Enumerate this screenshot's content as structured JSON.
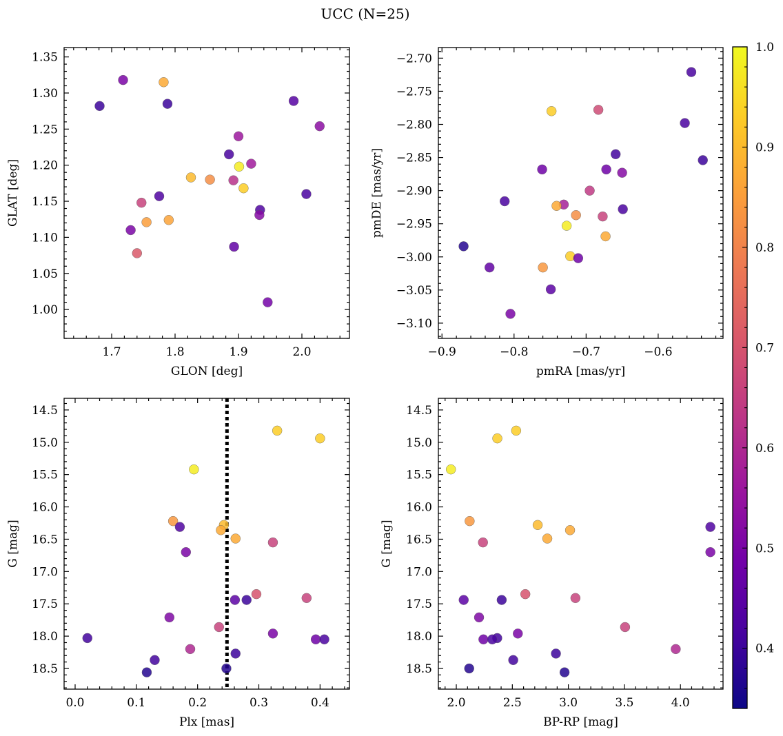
{
  "figure": {
    "title": "UCC (N=25)",
    "colormap": [
      "#0d0887",
      "#46039f",
      "#7201a8",
      "#9c179e",
      "#bd3786",
      "#d8576b",
      "#ed7953",
      "#fb9f3a",
      "#fdca26",
      "#f0f921"
    ]
  },
  "colorbar": {
    "vmin": 0.34,
    "vmax": 1.0,
    "ticks": [
      0.4,
      0.5,
      0.6,
      0.7,
      0.8,
      0.9,
      1.0
    ],
    "tick_labels": [
      "0.4",
      "0.5",
      "0.6",
      "0.7",
      "0.8",
      "0.9",
      "1.0"
    ]
  },
  "chart_data": [
    {
      "type": "scatter",
      "xlabel": "GLON [deg]",
      "ylabel": "GLAT [deg]",
      "xlim": [
        1.625,
        2.075
      ],
      "ylim": [
        0.96,
        1.363
      ],
      "yreverse": false,
      "xticks": [
        1.7,
        1.8,
        1.9,
        2.0
      ],
      "xtick_labels": [
        "1.7",
        "1.8",
        "1.9",
        "2.0"
      ],
      "yticks": [
        1.0,
        1.05,
        1.1,
        1.15,
        1.2,
        1.25,
        1.3,
        1.35
      ],
      "ytick_labels": [
        "1.00",
        "1.05",
        "1.10",
        "1.15",
        "1.20",
        "1.25",
        "1.30",
        "1.35"
      ],
      "points": [
        {
          "x": 1.681,
          "y": 1.282,
          "c": 0.4
        },
        {
          "x": 1.718,
          "y": 1.318,
          "c": 0.5
        },
        {
          "x": 1.782,
          "y": 1.315,
          "c": 0.87
        },
        {
          "x": 1.788,
          "y": 1.285,
          "c": 0.4
        },
        {
          "x": 1.987,
          "y": 1.289,
          "c": 0.44
        },
        {
          "x": 2.028,
          "y": 1.254,
          "c": 0.53
        },
        {
          "x": 1.9,
          "y": 1.24,
          "c": 0.56
        },
        {
          "x": 1.885,
          "y": 1.215,
          "c": 0.42
        },
        {
          "x": 1.92,
          "y": 1.202,
          "c": 0.57
        },
        {
          "x": 1.901,
          "y": 1.198,
          "c": 0.98
        },
        {
          "x": 1.825,
          "y": 1.183,
          "c": 0.9
        },
        {
          "x": 1.855,
          "y": 1.18,
          "c": 0.82
        },
        {
          "x": 1.892,
          "y": 1.179,
          "c": 0.62
        },
        {
          "x": 1.908,
          "y": 1.168,
          "c": 0.93
        },
        {
          "x": 2.007,
          "y": 1.16,
          "c": 0.42
        },
        {
          "x": 1.775,
          "y": 1.157,
          "c": 0.43
        },
        {
          "x": 1.747,
          "y": 1.148,
          "c": 0.66
        },
        {
          "x": 1.934,
          "y": 1.138,
          "c": 0.43
        },
        {
          "x": 1.933,
          "y": 1.131,
          "c": 0.52
        },
        {
          "x": 1.79,
          "y": 1.124,
          "c": 0.86
        },
        {
          "x": 1.755,
          "y": 1.121,
          "c": 0.85
        },
        {
          "x": 1.73,
          "y": 1.11,
          "c": 0.5
        },
        {
          "x": 1.74,
          "y": 1.078,
          "c": 0.71
        },
        {
          "x": 1.893,
          "y": 1.087,
          "c": 0.46
        },
        {
          "x": 1.946,
          "y": 1.01,
          "c": 0.49
        }
      ]
    },
    {
      "type": "scatter",
      "xlabel": "pmRA [mas/yr]",
      "ylabel": "pmDE [mas/yr]",
      "xlim": [
        -0.905,
        -0.51
      ],
      "ylim": [
        -3.123,
        -2.684
      ],
      "yreverse": false,
      "xticks": [
        -0.9,
        -0.8,
        -0.7,
        -0.6
      ],
      "xtick_labels": [
        "−0.9",
        "−0.8",
        "−0.7",
        "−0.6"
      ],
      "yticks": [
        -3.1,
        -3.05,
        -3.0,
        -2.95,
        -2.9,
        -2.85,
        -2.8,
        -2.75,
        -2.7
      ],
      "ytick_labels": [
        "−3.10",
        "−3.05",
        "−3.00",
        "−2.95",
        "−2.90",
        "−2.85",
        "−2.80",
        "−2.75",
        "−2.70"
      ],
      "points": [
        {
          "x": -0.554,
          "y": -2.721,
          "c": 0.42
        },
        {
          "x": -0.748,
          "y": -2.78,
          "c": 0.93
        },
        {
          "x": -0.683,
          "y": -2.778,
          "c": 0.68
        },
        {
          "x": -0.563,
          "y": -2.798,
          "c": 0.42
        },
        {
          "x": -0.659,
          "y": -2.845,
          "c": 0.41
        },
        {
          "x": -0.538,
          "y": -2.854,
          "c": 0.4
        },
        {
          "x": -0.761,
          "y": -2.868,
          "c": 0.48
        },
        {
          "x": -0.672,
          "y": -2.868,
          "c": 0.48
        },
        {
          "x": -0.65,
          "y": -2.873,
          "c": 0.52
        },
        {
          "x": -0.695,
          "y": -2.9,
          "c": 0.64
        },
        {
          "x": -0.813,
          "y": -2.916,
          "c": 0.42
        },
        {
          "x": -0.731,
          "y": -2.921,
          "c": 0.58
        },
        {
          "x": -0.741,
          "y": -2.923,
          "c": 0.87
        },
        {
          "x": -0.649,
          "y": -2.928,
          "c": 0.42
        },
        {
          "x": -0.714,
          "y": -2.937,
          "c": 0.82
        },
        {
          "x": -0.677,
          "y": -2.939,
          "c": 0.66
        },
        {
          "x": -0.727,
          "y": -2.953,
          "c": 0.98
        },
        {
          "x": -0.673,
          "y": -2.969,
          "c": 0.87
        },
        {
          "x": -0.87,
          "y": -2.984,
          "c": 0.37
        },
        {
          "x": -0.722,
          "y": -2.999,
          "c": 0.93
        },
        {
          "x": -0.711,
          "y": -3.002,
          "c": 0.48
        },
        {
          "x": -0.834,
          "y": -3.016,
          "c": 0.46
        },
        {
          "x": -0.76,
          "y": -3.016,
          "c": 0.84
        },
        {
          "x": -0.749,
          "y": -3.049,
          "c": 0.45
        },
        {
          "x": -0.805,
          "y": -3.086,
          "c": 0.5
        }
      ]
    },
    {
      "type": "scatter",
      "xlabel": "Plx [mas]",
      "ylabel": "G [mag]",
      "xlim": [
        -0.018,
        0.448
      ],
      "ylim": [
        14.32,
        18.82
      ],
      "yreverse": true,
      "xticks": [
        0.0,
        0.1,
        0.2,
        0.3,
        0.4
      ],
      "xtick_labels": [
        "0.0",
        "0.1",
        "0.2",
        "0.3",
        "0.4"
      ],
      "yticks": [
        14.5,
        15.0,
        15.5,
        16.0,
        16.5,
        17.0,
        17.5,
        18.0,
        18.5
      ],
      "ytick_labels": [
        "14.5",
        "15.0",
        "15.5",
        "16.0",
        "16.5",
        "17.0",
        "17.5",
        "18.0",
        "18.5"
      ],
      "vline": 0.248,
      "points": [
        {
          "x": 0.33,
          "y": 14.82,
          "c": 0.93
        },
        {
          "x": 0.4,
          "y": 14.94,
          "c": 0.93
        },
        {
          "x": 0.194,
          "y": 15.42,
          "c": 0.98
        },
        {
          "x": 0.16,
          "y": 16.22,
          "c": 0.84
        },
        {
          "x": 0.243,
          "y": 16.28,
          "c": 0.9
        },
        {
          "x": 0.171,
          "y": 16.31,
          "c": 0.43
        },
        {
          "x": 0.238,
          "y": 16.36,
          "c": 0.87
        },
        {
          "x": 0.262,
          "y": 16.49,
          "c": 0.87
        },
        {
          "x": 0.323,
          "y": 16.55,
          "c": 0.66
        },
        {
          "x": 0.181,
          "y": 16.7,
          "c": 0.5
        },
        {
          "x": 0.296,
          "y": 17.35,
          "c": 0.7
        },
        {
          "x": 0.378,
          "y": 17.41,
          "c": 0.66
        },
        {
          "x": 0.261,
          "y": 17.44,
          "c": 0.45
        },
        {
          "x": 0.28,
          "y": 17.44,
          "c": 0.4
        },
        {
          "x": 0.154,
          "y": 17.71,
          "c": 0.51
        },
        {
          "x": 0.235,
          "y": 17.86,
          "c": 0.66
        },
        {
          "x": 0.323,
          "y": 17.96,
          "c": 0.5
        },
        {
          "x": 0.02,
          "y": 18.03,
          "c": 0.41
        },
        {
          "x": 0.393,
          "y": 18.05,
          "c": 0.48
        },
        {
          "x": 0.407,
          "y": 18.05,
          "c": 0.42
        },
        {
          "x": 0.188,
          "y": 18.2,
          "c": 0.6
        },
        {
          "x": 0.262,
          "y": 18.27,
          "c": 0.4
        },
        {
          "x": 0.13,
          "y": 18.37,
          "c": 0.41
        },
        {
          "x": 0.247,
          "y": 18.5,
          "c": 0.37
        },
        {
          "x": 0.117,
          "y": 18.56,
          "c": 0.37
        }
      ]
    },
    {
      "type": "scatter",
      "xlabel": "BP-RP [mag]",
      "ylabel": "G [mag]",
      "xlim": [
        1.84,
        4.38
      ],
      "ylim": [
        14.32,
        18.82
      ],
      "yreverse": true,
      "xticks": [
        2.0,
        2.5,
        3.0,
        3.5,
        4.0
      ],
      "xtick_labels": [
        "2.0",
        "2.5",
        "3.0",
        "3.5",
        "4.0"
      ],
      "yticks": [
        14.5,
        15.0,
        15.5,
        16.0,
        16.5,
        17.0,
        17.5,
        18.0,
        18.5
      ],
      "ytick_labels": [
        "14.5",
        "15.0",
        "15.5",
        "16.0",
        "16.5",
        "17.0",
        "17.5",
        "18.0",
        "18.5"
      ],
      "points": [
        {
          "x": 2.534,
          "y": 14.82,
          "c": 0.93
        },
        {
          "x": 2.366,
          "y": 14.94,
          "c": 0.93
        },
        {
          "x": 1.952,
          "y": 15.42,
          "c": 0.98
        },
        {
          "x": 2.119,
          "y": 16.22,
          "c": 0.84
        },
        {
          "x": 2.726,
          "y": 16.28,
          "c": 0.9
        },
        {
          "x": 4.267,
          "y": 16.31,
          "c": 0.43
        },
        {
          "x": 3.015,
          "y": 16.36,
          "c": 0.87
        },
        {
          "x": 2.812,
          "y": 16.49,
          "c": 0.87
        },
        {
          "x": 2.238,
          "y": 16.55,
          "c": 0.66
        },
        {
          "x": 4.267,
          "y": 16.7,
          "c": 0.5
        },
        {
          "x": 2.616,
          "y": 17.35,
          "c": 0.7
        },
        {
          "x": 3.063,
          "y": 17.41,
          "c": 0.66
        },
        {
          "x": 2.066,
          "y": 17.44,
          "c": 0.45
        },
        {
          "x": 2.405,
          "y": 17.44,
          "c": 0.4
        },
        {
          "x": 2.203,
          "y": 17.71,
          "c": 0.51
        },
        {
          "x": 3.506,
          "y": 17.86,
          "c": 0.66
        },
        {
          "x": 2.549,
          "y": 17.96,
          "c": 0.5
        },
        {
          "x": 2.365,
          "y": 18.03,
          "c": 0.41
        },
        {
          "x": 2.242,
          "y": 18.05,
          "c": 0.48
        },
        {
          "x": 2.321,
          "y": 18.05,
          "c": 0.42
        },
        {
          "x": 3.958,
          "y": 18.2,
          "c": 0.6
        },
        {
          "x": 2.889,
          "y": 18.27,
          "c": 0.4
        },
        {
          "x": 2.508,
          "y": 18.37,
          "c": 0.41
        },
        {
          "x": 2.115,
          "y": 18.5,
          "c": 0.37
        },
        {
          "x": 2.966,
          "y": 18.56,
          "c": 0.37
        }
      ]
    }
  ]
}
